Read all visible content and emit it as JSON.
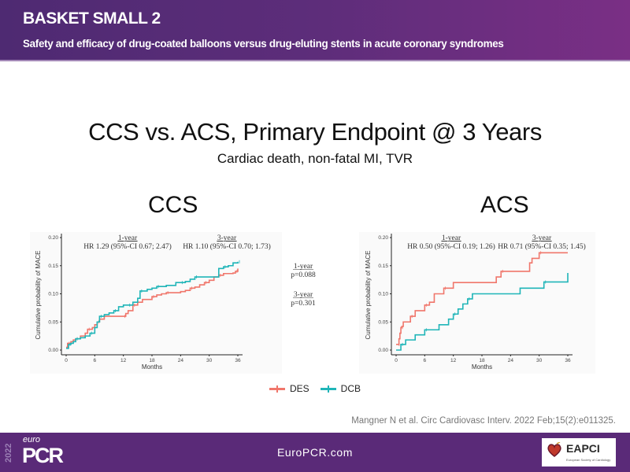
{
  "header": {
    "title": "BASKET SMALL 2",
    "subtitle": "Safety and efficacy of drug-coated balloons versus drug-eluting stents in acute coronary syndromes"
  },
  "main": {
    "title": "CCS vs. ACS, Primary Endpoint @ 3 Years",
    "subtitle": "Cardiac death, non-fatal MI, TVR"
  },
  "legend": [
    {
      "label": "DES",
      "color": "#f0766b"
    },
    {
      "label": "DCB",
      "color": "#1fb5b8"
    }
  ],
  "citation": "Mangner N et al. Circ Cardiovasc Interv. 2022 Feb;15(2):e011325.",
  "footer": {
    "url": "EuroPCR.com",
    "logo_year": "2022",
    "logo_euro": "euro",
    "logo_pcr": "PCR",
    "partner_name": "EAPCI",
    "partner_sub": "European Society of Cardiology"
  },
  "chart_data": [
    {
      "type": "line",
      "title": "CCS",
      "xlabel": "Months",
      "ylabel": "Cumulative probability of MACE",
      "xlim": [
        0,
        36
      ],
      "ylim": [
        0,
        0.2
      ],
      "xticks": [
        "0",
        "6",
        "12",
        "18",
        "24",
        "30",
        "36"
      ],
      "yticks": [
        "0.00",
        "0.05",
        "0.10",
        "0.15",
        "0.20"
      ],
      "grid": false,
      "annotations": [
        {
          "heading": "1-year",
          "text": "HR 1.29 (95%-CI 0.67; 2.47)"
        },
        {
          "heading": "3-year",
          "text": "HR 1.10 (95%-CI 0.70; 1.73)"
        }
      ],
      "pvalues": [
        {
          "heading": "1-year",
          "text": "p=0.088"
        },
        {
          "heading": "3-year",
          "text": "p=0.301"
        }
      ],
      "series": [
        {
          "name": "DES",
          "color": "#f0766b",
          "x": [
            0,
            0.3,
            1,
            1.5,
            2,
            3,
            4,
            4.5,
            5.5,
            6,
            6.5,
            7,
            8,
            12,
            12.5,
            13,
            14,
            15,
            16,
            18,
            19,
            20,
            21,
            24,
            25,
            26,
            27,
            28,
            29,
            30,
            31,
            32,
            33,
            35,
            35.5,
            36
          ],
          "y": [
            0.005,
            0.012,
            0.015,
            0.018,
            0.02,
            0.025,
            0.03,
            0.037,
            0.04,
            0.045,
            0.05,
            0.055,
            0.06,
            0.06,
            0.065,
            0.07,
            0.08,
            0.085,
            0.09,
            0.095,
            0.098,
            0.1,
            0.102,
            0.104,
            0.106,
            0.11,
            0.112,
            0.116,
            0.12,
            0.124,
            0.13,
            0.133,
            0.136,
            0.137,
            0.14,
            0.145
          ]
        },
        {
          "name": "DCB",
          "color": "#1fb5b8",
          "x": [
            0,
            0.5,
            1,
            1.5,
            2,
            3,
            4,
            5,
            6,
            6.5,
            7,
            8,
            9,
            10,
            11,
            12,
            13,
            14,
            15,
            15.5,
            17,
            18,
            19,
            21,
            23,
            24,
            25,
            26,
            27,
            30,
            32,
            33,
            34,
            35,
            36
          ],
          "y": [
            0.003,
            0.01,
            0.012,
            0.015,
            0.02,
            0.022,
            0.025,
            0.03,
            0.04,
            0.05,
            0.06,
            0.063,
            0.066,
            0.07,
            0.077,
            0.08,
            0.08,
            0.085,
            0.092,
            0.105,
            0.108,
            0.11,
            0.113,
            0.115,
            0.12,
            0.12,
            0.122,
            0.126,
            0.13,
            0.13,
            0.145,
            0.148,
            0.15,
            0.155,
            0.157
          ]
        }
      ]
    },
    {
      "type": "line",
      "title": "ACS",
      "xlabel": "Months",
      "ylabel": "Cumulative probability of MACE",
      "xlim": [
        0,
        36
      ],
      "ylim": [
        0,
        0.2
      ],
      "xticks": [
        "0",
        "6",
        "12",
        "18",
        "24",
        "30",
        "36"
      ],
      "yticks": [
        "0.00",
        "0.05",
        "0.10",
        "0.15",
        "0.20"
      ],
      "grid": false,
      "annotations": [
        {
          "heading": "1-year",
          "text": "HR 0.50 (95%-CI 0.19; 1.26)"
        },
        {
          "heading": "3-year",
          "text": "HR 0.71 (95%-CI 0.35; 1.45)"
        }
      ],
      "series": [
        {
          "name": "DES",
          "color": "#f0766b",
          "x": [
            0,
            0.3,
            0.6,
            0.8,
            1,
            1.2,
            1.5,
            3,
            4,
            5,
            6,
            7,
            8,
            10,
            12,
            21,
            22,
            28,
            28.5,
            30,
            36
          ],
          "y": [
            0.01,
            0.01,
            0.02,
            0.03,
            0.04,
            0.042,
            0.05,
            0.06,
            0.07,
            0.07,
            0.08,
            0.085,
            0.1,
            0.11,
            0.12,
            0.13,
            0.14,
            0.155,
            0.163,
            0.173,
            0.173
          ]
        },
        {
          "name": "DCB",
          "color": "#1fb5b8",
          "x": [
            0,
            1,
            2,
            4,
            6,
            9,
            11,
            12,
            13,
            14,
            15,
            16,
            26,
            31,
            35.5,
            36
          ],
          "y": [
            0,
            0.01,
            0.018,
            0.027,
            0.036,
            0.045,
            0.055,
            0.064,
            0.073,
            0.082,
            0.091,
            0.1,
            0.11,
            0.121,
            0.121,
            0.137
          ]
        }
      ]
    }
  ]
}
